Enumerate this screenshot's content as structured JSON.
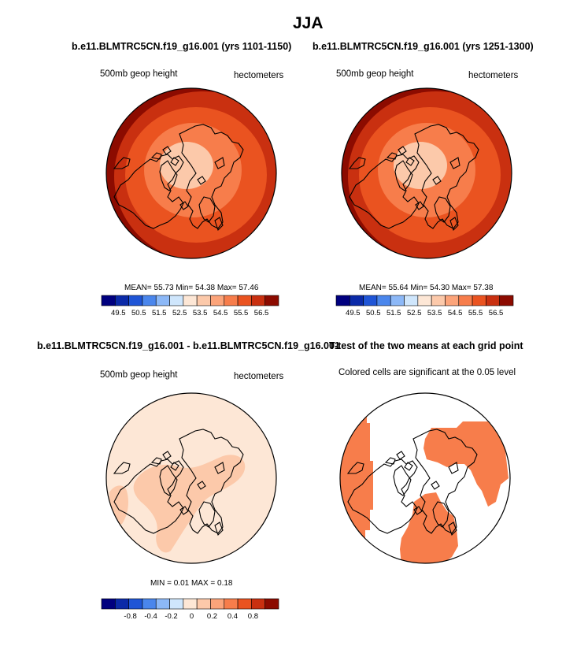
{
  "title": "JJA",
  "panels": {
    "top_left": {
      "title": "b.e11.BLMTRC5CN.f19_g16.001 (yrs 1101-1150)",
      "left_label": "500mb geop height",
      "right_label": "hectometers",
      "stats": "MEAN=  55.73  Min=  54.38  Max=  57.46"
    },
    "top_right": {
      "title": "b.e11.BLMTRC5CN.f19_g16.001 (yrs 1251-1300)",
      "left_label": "500mb geop height",
      "right_label": "hectometers",
      "stats": "MEAN=  55.64  Min=  54.30  Max=  57.38"
    },
    "bottom_left": {
      "title": "b.e11.BLMTRC5CN.f19_g16.001 - b.e11.BLMTRC5CN.f19_g16.001",
      "left_label": "500mb geop height",
      "right_label": "hectometers",
      "stats": "MIN =  0.01 MAX =  0.18"
    },
    "bottom_right": {
      "title": "T-test of the two means at each grid point",
      "label": "Colored cells are significant at the 0.05 level"
    }
  },
  "colorbars": {
    "top": {
      "colors": [
        "#00007f",
        "#0b2aa8",
        "#1f55d6",
        "#4a86ec",
        "#8cb8f7",
        "#cfe6fc",
        "#fde7d6",
        "#fcc9aa",
        "#fca47a",
        "#f77d4b",
        "#ea5320",
        "#c93010",
        "#8c0b00"
      ],
      "tick_labels": [
        "49.5",
        "50.5",
        "51.5",
        "52.5",
        "53.5",
        "54.5",
        "55.5",
        "56.5"
      ],
      "levels": [
        49.5,
        50,
        50.5,
        51,
        51.5,
        52,
        52.5,
        53,
        53.5,
        54,
        54.5,
        55,
        55.5,
        56,
        56.5
      ]
    },
    "bottom": {
      "colors": [
        "#00007f",
        "#0b2aa8",
        "#1f55d6",
        "#4a86ec",
        "#8cb8f7",
        "#cfe6fc",
        "#fde7d6",
        "#fcc9aa",
        "#fca47a",
        "#f77d4b",
        "#ea5320",
        "#c93010",
        "#8c0b00"
      ],
      "tick_labels": [
        "-0.8",
        "-0.4",
        "-0.2",
        "0",
        "0.2",
        "0.4",
        "0.8"
      ]
    }
  },
  "chart_data": [
    {
      "type": "heatmap",
      "title": "b.e11.BLMTRC5CN.f19_g16.001 (yrs 1101-1150)",
      "variable": "500mb geop height",
      "units": "hectometers",
      "projection": "north polar stereographic",
      "mean": 55.73,
      "min": 54.38,
      "max": 57.46,
      "contour_levels": [
        53.5,
        54,
        54.5,
        55,
        55.5,
        56,
        56.5
      ],
      "colors": {
        "pole": "#fcc9aa",
        "ring": "#f77d4b",
        "mid": "#ea5320",
        "outer": "#c93010",
        "max": "#8c0b00"
      }
    },
    {
      "type": "heatmap",
      "title": "b.e11.BLMTRC5CN.f19_g16.001 (yrs 1251-1300)",
      "variable": "500mb geop height",
      "units": "hectometers",
      "projection": "north polar stereographic",
      "mean": 55.64,
      "min": 54.3,
      "max": 57.38,
      "contour_levels": [
        53.5,
        54,
        54.5,
        55,
        55.5,
        56,
        56.5
      ],
      "colors": {
        "pole": "#fcc9aa",
        "ring": "#f77d4b",
        "mid": "#ea5320",
        "outer": "#c93010",
        "max": "#8c0b00"
      }
    },
    {
      "type": "heatmap",
      "title": "b.e11.BLMTRC5CN.f19_g16.001 - b.e11.BLMTRC5CN.f19_g16.001",
      "variable": "500mb geop height",
      "units": "hectometers",
      "projection": "north polar stereographic",
      "min": 0.01,
      "max": 0.18,
      "contour_levels": [
        -0.8,
        -0.6,
        -0.4,
        -0.3,
        -0.2,
        -0.1,
        0,
        0.1,
        0.2,
        0.3,
        0.4,
        0.6,
        0.8
      ],
      "colors": {
        "background": "#fde7d6",
        "highlight": "#fcc9aa"
      }
    },
    {
      "type": "heatmap",
      "title": "T-test of the two means at each grid point",
      "variable": "significance mask",
      "note": "Colored cells are significant at the 0.05 level",
      "significance_level": 0.05,
      "colors": {
        "significant": "#f77d4b"
      }
    }
  ]
}
